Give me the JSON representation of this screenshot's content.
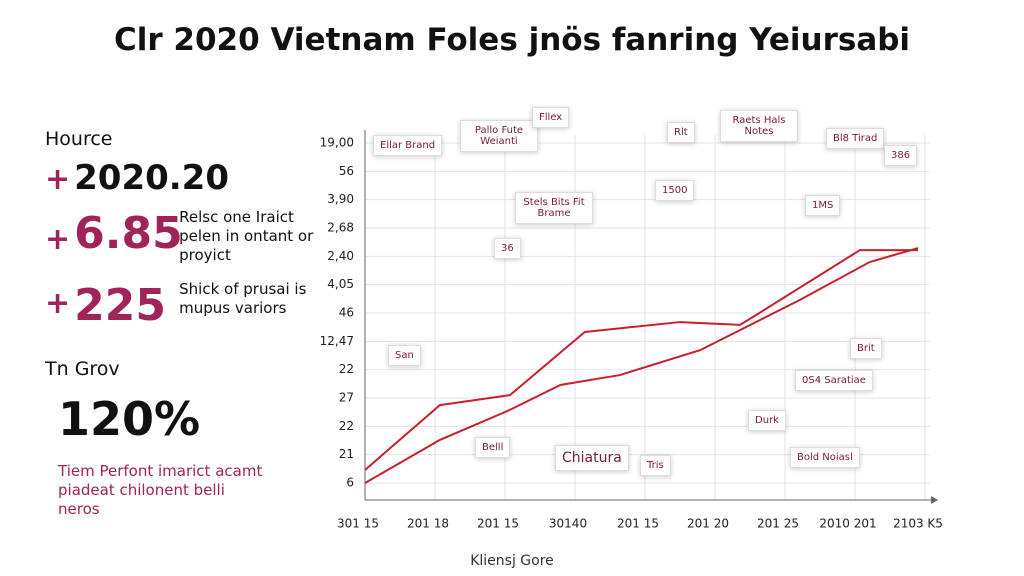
{
  "header": {
    "title": "Clr 2020 Vietnam Foles jnös fanring Yeiursabi"
  },
  "sidebar": {
    "heading": "Hource",
    "headline": "2020.20",
    "stats": [
      {
        "sign": "+",
        "value": "6.85",
        "text": "Relsc one Iraict pelen in ontant or proyict"
      },
      {
        "sign": "+",
        "value": "225",
        "text": "Shick of prusai is mupus variors"
      }
    ],
    "growth_heading": "Tn Grov",
    "growth_value": "120%",
    "growth_text": "Tiem Perfont imarict acamt piadeat chilonent belli neros"
  },
  "footer": "Kliensj Gore",
  "chart_data": {
    "type": "line",
    "xlim": [
      0,
      8
    ],
    "xticks": [
      {
        "value": 0,
        "label": "301 15"
      },
      {
        "value": 1,
        "label": "201 18"
      },
      {
        "value": 2,
        "label": "201 15"
      },
      {
        "value": 3,
        "label": "30140"
      },
      {
        "value": 4,
        "label": "201 15"
      },
      {
        "value": 5,
        "label": "201 20"
      },
      {
        "value": 6,
        "label": "201 25"
      },
      {
        "value": 7,
        "label": "2010 201"
      },
      {
        "value": 8,
        "label": "2103 K5"
      }
    ],
    "ylim": [
      0,
      12
    ],
    "yticks": [
      {
        "value": 12,
        "label": "19,00"
      },
      {
        "value": 11,
        "label": "56"
      },
      {
        "value": 10,
        "label": "3,90"
      },
      {
        "value": 9,
        "label": "2,68"
      },
      {
        "value": 8,
        "label": "2,40"
      },
      {
        "value": 7,
        "label": "4,05"
      },
      {
        "value": 6,
        "label": "46"
      },
      {
        "value": 5,
        "label": "12,47"
      },
      {
        "value": 4,
        "label": "22"
      },
      {
        "value": 3,
        "label": "27"
      },
      {
        "value": 2,
        "label": "22"
      },
      {
        "value": 1,
        "label": "21"
      },
      {
        "value": 0,
        "label": "6"
      }
    ],
    "grid": true,
    "series": [
      {
        "color": "#c8202e",
        "x": [
          0.1,
          1.17,
          2.17,
          3.24,
          4.6,
          5.46,
          7.17,
          8
        ],
        "values": [
          0.46,
          2.75,
          3.1,
          5.33,
          5.68,
          5.58,
          8.22,
          8.22
        ]
      },
      {
        "color": "#c8202e",
        "x": [
          0.1,
          1.17,
          2.17,
          2.89,
          3.74,
          4.89,
          6.31,
          7.31,
          8
        ],
        "values": [
          0,
          1.52,
          2.58,
          3.46,
          3.81,
          4.69,
          6.46,
          7.8,
          8.29
        ]
      }
    ],
    "annotations": [
      "Ellar Brand",
      "Pallo Fute Weianti",
      "Fllex",
      "Stels Bits Fit Brame",
      "36",
      "1500",
      "Rlt",
      "Raets Hals Notes",
      "1MS",
      "Bl8 Tirad",
      "386",
      "San",
      "Brit",
      "Chiatura",
      "Tris",
      "Bold Noiasl",
      "0S4 Saratiae",
      "Durk",
      "Belll"
    ]
  }
}
